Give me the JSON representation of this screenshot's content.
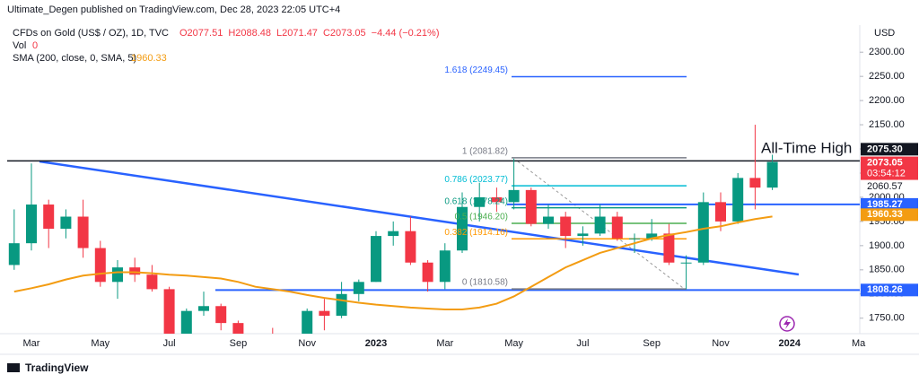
{
  "chart_data": {
    "type": "candlestick",
    "published": "Ultimate_Degen published on TradingView.com, Dec 28, 2023 22:05 UTC+4",
    "symbol": "CFDs on Gold (US$ / OZ), 1D, TVC",
    "ohlc_text": [
      "O2077.51",
      "H2088.48",
      "L2071.47",
      "C2073.05",
      "−4.44 (−0.21%)"
    ],
    "volume_label": "Vol",
    "volume_value": 0,
    "currency": "USD",
    "annotation": "All-Time High",
    "brand": "TradingView",
    "up_color": "#089981",
    "down_color": "#f23645",
    "categories": [
      null,
      "Mar",
      null,
      null,
      null,
      "May",
      null,
      null,
      null,
      "Jul",
      null,
      null,
      null,
      "Sep",
      null,
      null,
      null,
      "Nov",
      null,
      null,
      null,
      "2023",
      null,
      null,
      null,
      "Mar",
      null,
      null,
      null,
      "May",
      null,
      null,
      null,
      "Jul",
      null,
      null,
      null,
      "Sep",
      null,
      null,
      null,
      "Nov",
      null,
      null,
      null,
      "2024",
      null,
      null,
      null,
      "Ma"
    ],
    "open": [
      1860,
      1905,
      1985,
      1935,
      1960,
      1895,
      1825,
      1855,
      1840,
      1810,
      1710,
      1765,
      1775,
      1740,
      1675,
      1660,
      1650,
      1645,
      1765,
      1755,
      1800,
      1825,
      1920,
      1930,
      1865,
      1825,
      1890,
      1980,
      2000,
      1990,
      2015,
      1945,
      1960,
      1920,
      1925,
      1960,
      1915,
      1915,
      1925,
      1865,
      1865,
      1990,
      1950,
      2040,
      2020,
      null,
      null,
      null,
      null,
      null
    ],
    "high": [
      1975,
      2070,
      1995,
      1975,
      1995,
      1910,
      1870,
      1875,
      1860,
      1815,
      1770,
      1805,
      1780,
      1745,
      1690,
      1730,
      1675,
      1770,
      1790,
      1825,
      1830,
      1930,
      1950,
      1960,
      1870,
      1905,
      2010,
      2030,
      2020,
      2080,
      2020,
      1985,
      1970,
      1940,
      1985,
      1970,
      1925,
      1955,
      1945,
      1880,
      2010,
      2010,
      2050,
      2150,
      2088,
      null,
      null,
      null,
      null,
      null
    ],
    "low": [
      1850,
      1890,
      1895,
      1915,
      1875,
      1815,
      1790,
      1825,
      1805,
      1700,
      1680,
      1755,
      1725,
      1660,
      1615,
      1640,
      1620,
      1615,
      1725,
      1750,
      1785,
      1825,
      1900,
      1860,
      1805,
      1810,
      1885,
      1950,
      1970,
      1975,
      1940,
      1935,
      1895,
      1900,
      1920,
      1910,
      1885,
      1910,
      1860,
      1810,
      1860,
      1930,
      1945,
      1975,
      2015,
      null,
      null,
      null,
      null,
      null
    ],
    "close": [
      1905,
      1985,
      1935,
      1960,
      1895,
      1825,
      1855,
      1840,
      1810,
      1710,
      1765,
      1775,
      1740,
      1675,
      1660,
      1650,
      1645,
      1765,
      1755,
      1800,
      1825,
      1920,
      1930,
      1865,
      1825,
      1890,
      1980,
      2000,
      1990,
      2015,
      1945,
      1960,
      1920,
      1925,
      1960,
      1915,
      1915,
      1925,
      1865,
      1865,
      1990,
      1950,
      2040,
      2020,
      2073,
      null,
      null,
      null,
      null,
      null
    ],
    "sma": {
      "name": "SMA (200, close, 0, SMA, 5)",
      "color": "#f39c12",
      "value_label": "1960.33",
      "values": [
        1805,
        1812,
        1820,
        1830,
        1838,
        1842,
        1845,
        1845,
        1843,
        1840,
        1838,
        1835,
        1832,
        1825,
        1815,
        1810,
        1805,
        1798,
        1792,
        1787,
        1782,
        1778,
        1775,
        1772,
        1770,
        1768,
        1768,
        1772,
        1780,
        1795,
        1815,
        1835,
        1855,
        1870,
        1885,
        1895,
        1905,
        1915,
        1922,
        1928,
        1935,
        1940,
        1948,
        1955,
        1960.33,
        null,
        null,
        null,
        null,
        null
      ]
    },
    "ylim": [
      1718,
      2356
    ],
    "yticks": [
      {
        "value": 1750,
        "label": "1750.00"
      },
      {
        "value": 1800,
        "label": "1800.00"
      },
      {
        "value": 1850,
        "label": "1850.00"
      },
      {
        "value": 1900,
        "label": "1900.00"
      },
      {
        "value": 1950,
        "label": "1950.00"
      },
      {
        "value": 2000,
        "label": "2000.00"
      },
      {
        "value": 2050,
        "label": "2050.00"
      },
      {
        "value": 2100,
        "label": "2100.00"
      },
      {
        "value": 2150,
        "label": "2150.00"
      },
      {
        "value": 2200,
        "label": "2200.00"
      },
      {
        "value": 2250,
        "label": "2250.00"
      },
      {
        "value": 2300,
        "label": "2300.00"
      }
    ],
    "fib_levels": [
      {
        "value": 2249.45,
        "label": "1.618 (2249.45)",
        "color": "#2962ff"
      },
      {
        "value": 2081.82,
        "label": "1 (2081.82)",
        "color": "#787b86"
      },
      {
        "value": 2023.77,
        "label": "0.786 (2023.77)",
        "color": "#00bcd4"
      },
      {
        "value": 1978.24,
        "label": "0.618 (1978.24)",
        "color": "#089981"
      },
      {
        "value": 1946.2,
        "label": "0.5 (1946.20)",
        "color": "#4caf50"
      },
      {
        "value": 1914.16,
        "label": "0.382 (1914.16)",
        "color": "#ff9800"
      },
      {
        "value": 1810.58,
        "label": "0 (1810.58)",
        "color": "#787b86"
      }
    ],
    "price_lines": [
      {
        "value": 2075.3,
        "label": "2075.30",
        "color": "#131722",
        "full": true
      },
      {
        "value": 1985.27,
        "label": "1985.27",
        "color": "#2962ff",
        "full": false
      },
      {
        "value": 1808.26,
        "label": "1808.26",
        "color": "#2962ff",
        "full": false
      }
    ],
    "last_price": {
      "value": 2073.05,
      "label": "2073.05",
      "countdown": "03:54:12",
      "color": "#f23645"
    },
    "extra_price": {
      "value": 2060.57,
      "label": "2060.57"
    }
  }
}
